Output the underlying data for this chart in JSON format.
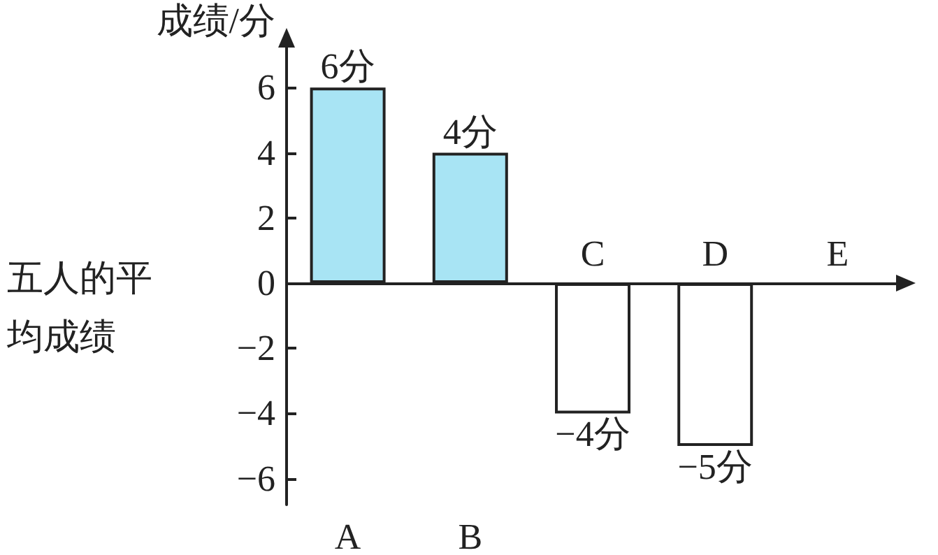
{
  "chart_data": {
    "type": "bar",
    "ylabel": "成绩/分",
    "categories": [
      "A",
      "B",
      "C",
      "D",
      "E"
    ],
    "values": [
      6,
      4,
      -4,
      -5,
      null
    ],
    "colors": [
      "#a8e4f4",
      "#a8e4f4",
      "#ffffff",
      "#ffffff",
      "#ffffff"
    ],
    "value_labels": [
      "6分",
      "4分",
      "−4分",
      "−5分",
      null
    ],
    "ylim": [
      -6.8,
      7.4
    ],
    "yticks": [
      -6,
      -4,
      -2,
      0,
      2,
      4,
      6
    ],
    "annotations": [
      "五人的平均成绩"
    ]
  }
}
